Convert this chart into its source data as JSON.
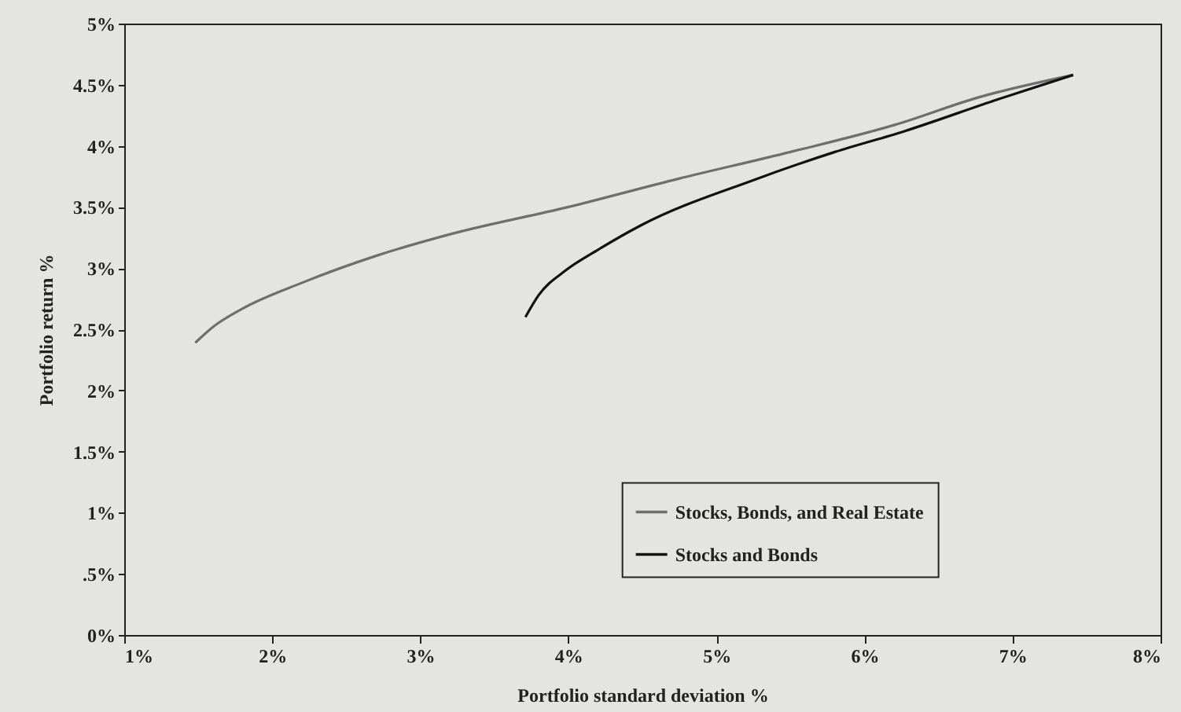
{
  "chart_data": {
    "type": "line",
    "xlabel": "Portfolio standard deviation %",
    "ylabel": "Portfolio return %",
    "series": [
      {
        "name": "Stocks, Bonds, and Real Estate",
        "color": "#6e6e6e",
        "x": [
          1.48,
          1.6,
          1.8,
          2.2,
          2.7,
          3.21,
          4.0,
          4.74,
          5.5,
          6.2,
          6.78,
          7.41
        ],
        "values": [
          2.39,
          2.52,
          2.67,
          2.88,
          3.1,
          3.28,
          3.5,
          3.73,
          3.95,
          4.17,
          4.4,
          4.58
        ]
      },
      {
        "name": "Stocks and Bonds",
        "color": "#111111",
        "x": [
          3.71,
          3.8,
          3.98,
          4.2,
          4.49,
          5.25,
          5.8,
          6.27,
          6.9,
          7.41
        ],
        "values": [
          2.6,
          2.78,
          2.98,
          3.15,
          3.35,
          3.72,
          3.95,
          4.12,
          4.38,
          4.58
        ]
      }
    ],
    "xlim": [
      1,
      8
    ],
    "xticks": [
      {
        "value": 1,
        "label": "1%"
      },
      {
        "value": 2,
        "label": "2%"
      },
      {
        "value": 3,
        "label": "3%"
      },
      {
        "value": 4,
        "label": "4%"
      },
      {
        "value": 5,
        "label": "5%"
      },
      {
        "value": 6,
        "label": "6%"
      },
      {
        "value": 7,
        "label": "7%"
      },
      {
        "value": 8,
        "label": "8%"
      }
    ],
    "ylim": [
      0,
      5
    ],
    "yticks": [
      {
        "value": 0,
        "label": "0%"
      },
      {
        "value": 0.5,
        "label": ".5%"
      },
      {
        "value": 1,
        "label": "1%"
      },
      {
        "value": 1.5,
        "label": "1.5%"
      },
      {
        "value": 2,
        "label": "2%"
      },
      {
        "value": 2.5,
        "label": "2.5%"
      },
      {
        "value": 3,
        "label": "3%"
      },
      {
        "value": 3.5,
        "label": "3.5%"
      },
      {
        "value": 4,
        "label": "4%"
      },
      {
        "value": 4.5,
        "label": "4.5%"
      },
      {
        "value": 5,
        "label": "5%"
      }
    ],
    "grid": false,
    "legend": "bottom right",
    "marker": "none",
    "line_style": "solid"
  }
}
